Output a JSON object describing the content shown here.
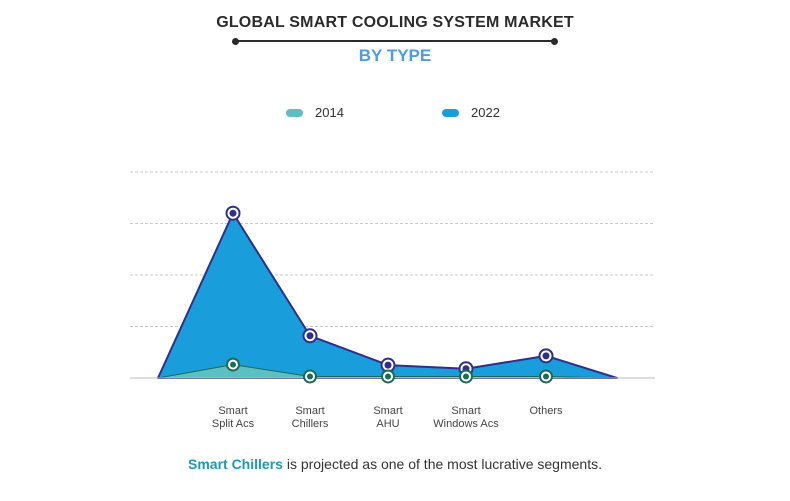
{
  "title": "GLOBAL SMART COOLING SYSTEM MARKET",
  "subtitle": "BY TYPE",
  "footer": {
    "highlight": "Smart Chillers",
    "rest": " is projected as one of the most lucrative segments."
  },
  "colors": {
    "series_2014": "#5cbfc2",
    "series_2022": "#1a9ddb",
    "outline": "#2e2f8c",
    "marker_2014": "#1b6b57",
    "subtitle": "#4c9be6",
    "highlight": "#1a9ab5"
  },
  "chart_data": {
    "type": "area",
    "categories": [
      "Smart\nSplit Acs",
      "Smart\nChillers",
      "Smart\nAHU",
      "Smart\nWindows Acs",
      "Others"
    ],
    "series": [
      {
        "name": "2014",
        "values": [
          2.6,
          0.3,
          0.3,
          0.3,
          0.3
        ]
      },
      {
        "name": "2022",
        "values": [
          32,
          8.2,
          2.5,
          1.8,
          4.3
        ]
      }
    ],
    "ylim": [
      0,
      40
    ],
    "grid": true,
    "legend_position": "top-center",
    "xlabel": "",
    "ylabel": ""
  }
}
